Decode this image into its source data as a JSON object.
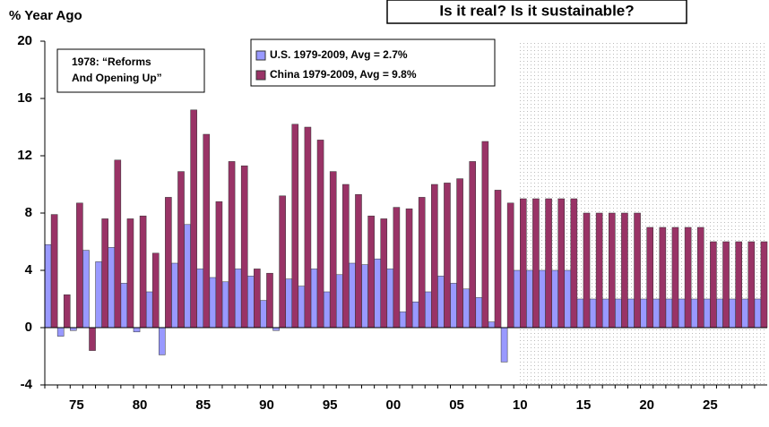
{
  "chart_data": {
    "type": "bar",
    "title": "Is it real? Is it sustainable?",
    "y_label": "% Year Ago",
    "annotation": [
      "1978: “Reforms",
      "And Opening Up”"
    ],
    "categories": [
      null,
      null,
      "75",
      null,
      null,
      null,
      null,
      "80",
      null,
      null,
      null,
      null,
      "85",
      null,
      null,
      null,
      null,
      "90",
      null,
      null,
      null,
      null,
      "95",
      null,
      null,
      null,
      null,
      "00",
      null,
      null,
      null,
      null,
      "05",
      null,
      null,
      null,
      null,
      "10",
      null,
      null,
      null,
      null,
      "15",
      null,
      null,
      null,
      null,
      "20",
      null,
      null,
      null,
      null,
      "25",
      null,
      null,
      null,
      null
    ],
    "series": [
      {
        "name": "U.S. 1979-2009, Avg = 2.7%",
        "color": "#9999ff",
        "values": [
          5.8,
          -0.6,
          -0.2,
          5.4,
          4.6,
          5.6,
          3.1,
          -0.3,
          2.5,
          -1.9,
          4.5,
          7.2,
          4.1,
          3.5,
          3.2,
          4.1,
          3.6,
          1.9,
          -0.2,
          3.4,
          2.9,
          4.1,
          2.5,
          3.7,
          4.5,
          4.4,
          4.8,
          4.1,
          1.1,
          1.8,
          2.5,
          3.6,
          3.1,
          2.7,
          2.1,
          0.4,
          -2.4,
          4,
          4,
          4,
          4,
          4,
          2,
          2,
          2,
          2,
          2,
          2,
          2,
          2,
          2,
          2,
          2,
          2,
          2,
          2,
          2
        ]
      },
      {
        "name": "China 1979-2009, Avg = 9.8%",
        "color": "#993366",
        "values": [
          7.9,
          2.3,
          8.7,
          -1.6,
          7.6,
          11.7,
          7.6,
          7.8,
          5.2,
          9.1,
          10.9,
          15.2,
          13.5,
          8.8,
          11.6,
          11.3,
          4.1,
          3.8,
          9.2,
          14.2,
          14.0,
          13.1,
          10.9,
          10.0,
          9.3,
          7.8,
          7.6,
          8.4,
          8.3,
          9.1,
          10.0,
          10.1,
          10.4,
          11.6,
          13.0,
          9.6,
          8.7,
          9,
          9,
          9,
          9,
          9,
          8,
          8,
          8,
          8,
          8,
          7,
          7,
          7,
          7,
          7,
          6,
          6,
          6,
          6,
          6
        ]
      }
    ],
    "ylim": [
      -4,
      20
    ],
    "yticks": [
      -4,
      0,
      4,
      8,
      12,
      16,
      20
    ],
    "grid": false
  }
}
